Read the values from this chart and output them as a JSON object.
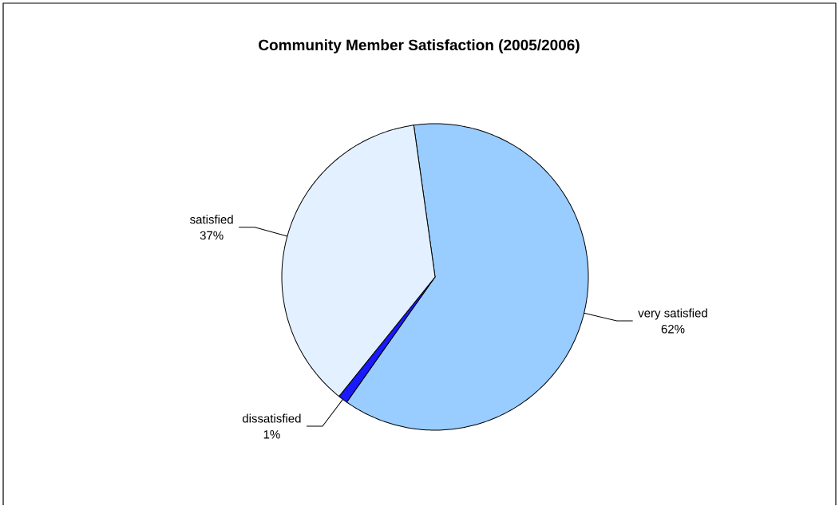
{
  "chart_data": {
    "type": "pie",
    "title": "Community Member Satisfaction (2005/2006)",
    "categories": [
      "very satisfied",
      "dissatisfied",
      "satisfied"
    ],
    "values": [
      62,
      1,
      37
    ],
    "value_labels": [
      "62%",
      "1%",
      "37%"
    ],
    "colors": [
      "#99ccff",
      "#1a1aff",
      "#e3f0ff"
    ]
  }
}
